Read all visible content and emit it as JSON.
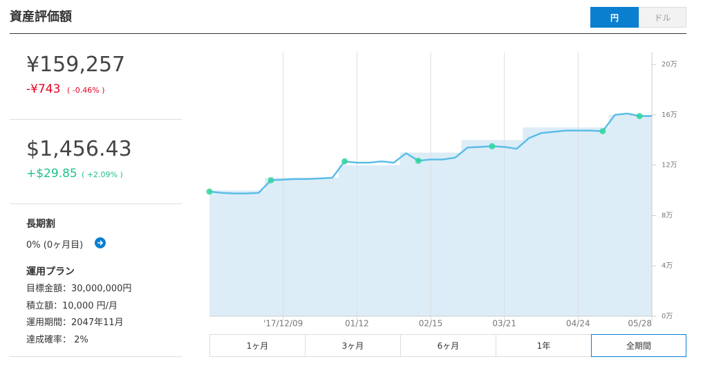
{
  "header": {
    "title": "資産評価額",
    "toggle": [
      "円",
      "ドル"
    ]
  },
  "summary": {
    "jpy": {
      "value": "¥159,257",
      "change": "-¥743",
      "percent": "( -0.46% )"
    },
    "usd": {
      "value": "$1,456.43",
      "change": "+$29.85",
      "percent": "( +2.09% )"
    }
  },
  "long_term": {
    "title": "長期割",
    "text": "0% (0ヶ月目)"
  },
  "plan": {
    "title": "運用プラン",
    "lines": [
      "目標金額：30,000,000円",
      "積立額：10,000 円/月",
      "運用期間：2047年11月",
      "達成確率： 2%"
    ]
  },
  "ranges": [
    "1ヶ月",
    "3ヶ月",
    "6ヶ月",
    "1年",
    "全期間"
  ],
  "chart_data": {
    "type": "line",
    "categories": [
      null,
      null,
      null,
      null,
      null,
      null,
      "'17/12/09",
      null,
      null,
      null,
      null,
      null,
      "01/12",
      null,
      null,
      null,
      null,
      null,
      "02/15",
      null,
      null,
      null,
      null,
      null,
      "03/21",
      null,
      null,
      null,
      null,
      null,
      "04/24",
      null,
      null,
      null,
      null,
      null,
      "05/28"
    ],
    "series": [
      {
        "color": "#cfe6f5",
        "values": [
          100000,
          100000,
          100000,
          100000,
          100000,
          110000,
          110000,
          110000,
          110000,
          110000,
          110000,
          120000,
          120000,
          120000,
          120000,
          120000,
          130000,
          130000,
          130000,
          130000,
          130000,
          140000,
          140000,
          140000,
          140000,
          140000,
          150000,
          150000,
          150000,
          150000,
          150000,
          150000,
          150000,
          160000,
          160000,
          160000,
          160000
        ]
      },
      {
        "color": "#5bbde8",
        "values": [
          99000,
          98000,
          97500,
          97500,
          98000,
          108000,
          108500,
          109000,
          109000,
          109500,
          110000,
          123000,
          122000,
          122000,
          123000,
          122000,
          129500,
          123500,
          124500,
          124500,
          126000,
          134000,
          134500,
          135000,
          134500,
          133000,
          141500,
          145500,
          146500,
          147500,
          147500,
          147500,
          147000,
          160000,
          161000,
          159000,
          159000
        ]
      },
      {
        "color": "#2fd69b",
        "values": [
          99000,
          null,
          null,
          null,
          null,
          108000,
          null,
          null,
          null,
          null,
          null,
          123000,
          null,
          null,
          null,
          null,
          null,
          123500,
          null,
          null,
          null,
          null,
          null,
          135000,
          null,
          null,
          null,
          null,
          null,
          null,
          null,
          null,
          147000,
          null,
          null,
          159000,
          null
        ]
      }
    ],
    "ylim": [
      0,
      210000
    ],
    "yticks": [
      {
        "value": 0,
        "label": "0万"
      },
      {
        "value": 40000,
        "label": "4万"
      },
      {
        "value": 80000,
        "label": "8万"
      },
      {
        "value": 120000,
        "label": "12万"
      },
      {
        "value": 160000,
        "label": "16万"
      },
      {
        "value": 200000,
        "label": "20万"
      }
    ]
  }
}
